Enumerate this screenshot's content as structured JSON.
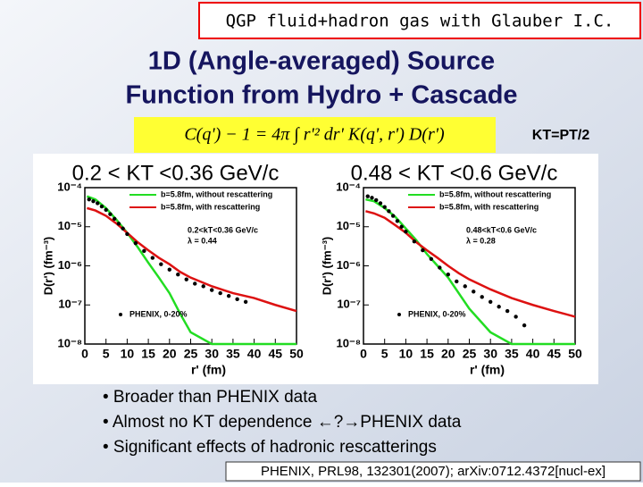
{
  "header": {
    "tag": "QGP fluid+hadron gas with Glauber I.C.",
    "title": [
      "1D (Angle-averaged) Source",
      "Function from Hydro + Cascade"
    ],
    "formula": "C(q') − 1 = 4π ∫ r'² dr' K(q', r') D(r')",
    "note": "KT=PT/2"
  },
  "chart_data": [
    {
      "type": "line",
      "title": "0.2 < KT <0.36 GeV/c",
      "xlabel": "r' (fm)",
      "ylabel": "D(r') (fm⁻³)",
      "log_y": true,
      "xlim": [
        0,
        50
      ],
      "ylim": [
        1e-08,
        0.0001
      ],
      "xticks": [
        0,
        5,
        10,
        15,
        20,
        25,
        30,
        35,
        40,
        45,
        50
      ],
      "yticks": [
        {
          "value": 1e-08,
          "label": "10⁻⁸"
        },
        {
          "value": 1e-07,
          "label": "10⁻⁷"
        },
        {
          "value": 1e-06,
          "label": "10⁻⁶"
        },
        {
          "value": 1e-05,
          "label": "10⁻⁵"
        },
        {
          "value": 0.0001,
          "label": "10⁻⁴"
        }
      ],
      "annotations": [
        "0.2<kT<0.36 GeV/c",
        "λ = 0.44"
      ],
      "series": [
        {
          "name": "b=5.8fm, without rescattering",
          "color": "#22dd22",
          "style": "line",
          "x": [
            0.5,
            2.5,
            5,
            7.5,
            10,
            12.5,
            15,
            17.5,
            20,
            22.5,
            25,
            30,
            35,
            40,
            45,
            50
          ],
          "values": [
            6e-05,
            5e-05,
            3e-05,
            1.5e-05,
            7e-06,
            3e-06,
            1.2e-06,
            5e-07,
            2e-07,
            6e-08,
            2e-08,
            1e-08,
            1e-08,
            1e-08,
            1e-08,
            1e-08
          ]
        },
        {
          "name": "b=5.8fm, with rescattering",
          "color": "#dd1111",
          "style": "line",
          "x": [
            0.5,
            2.5,
            5,
            7.5,
            10,
            12.5,
            15,
            17.5,
            20,
            22.5,
            25,
            30,
            35,
            40,
            45,
            50
          ],
          "values": [
            3e-05,
            2.6e-05,
            1.9e-05,
            1.2e-05,
            7e-06,
            4e-06,
            2.5e-06,
            1.6e-06,
            1.1e-06,
            7e-07,
            5e-07,
            3e-07,
            2e-07,
            1.5e-07,
            1e-07,
            7e-08
          ]
        },
        {
          "name": "PHENIX, 0-20%",
          "color": "#000000",
          "style": "points",
          "x": [
            1,
            2,
            3,
            4,
            5,
            6,
            7,
            8,
            9,
            10,
            12,
            14,
            16,
            18,
            20,
            22,
            24,
            26,
            28,
            30,
            32,
            34,
            36,
            38
          ],
          "values": [
            5e-05,
            4.5e-05,
            4e-05,
            3.3e-05,
            2.7e-05,
            2.1e-05,
            1.6e-05,
            1.2e-05,
            9e-06,
            6.5e-06,
            3.8e-06,
            2.4e-06,
            1.6e-06,
            1.1e-06,
            8e-07,
            6e-07,
            4.5e-07,
            3.5e-07,
            3e-07,
            2.4e-07,
            2e-07,
            1.7e-07,
            1.4e-07,
            1.2e-07
          ]
        }
      ]
    },
    {
      "type": "line",
      "title": "0.48 < KT <0.6 GeV/c",
      "xlabel": "r' (fm)",
      "ylabel": "D(r') (fm⁻³)",
      "log_y": true,
      "xlim": [
        0,
        50
      ],
      "ylim": [
        1e-08,
        0.0001
      ],
      "xticks": [
        0,
        5,
        10,
        15,
        20,
        25,
        30,
        35,
        40,
        45,
        50
      ],
      "yticks": [
        {
          "value": 1e-08,
          "label": "10⁻⁸"
        },
        {
          "value": 1e-07,
          "label": "10⁻⁷"
        },
        {
          "value": 1e-06,
          "label": "10⁻⁶"
        },
        {
          "value": 1e-05,
          "label": "10⁻⁵"
        },
        {
          "value": 0.0001,
          "label": "10⁻⁴"
        }
      ],
      "annotations": [
        "0.48<kT<0.6 GeV/c",
        "λ = 0.28"
      ],
      "series": [
        {
          "name": "b=5.8fm, without rescattering",
          "color": "#22dd22",
          "style": "line",
          "x": [
            0.5,
            2.5,
            5,
            7.5,
            10,
            12.5,
            15,
            17.5,
            20,
            22.5,
            25,
            30,
            35,
            40,
            45,
            50
          ],
          "values": [
            5e-05,
            4.5e-05,
            3e-05,
            1.8e-05,
            9e-06,
            4.5e-06,
            2e-06,
            1e-06,
            5e-07,
            2e-07,
            8e-08,
            2e-08,
            1e-08,
            1e-08,
            1e-08,
            1e-08
          ]
        },
        {
          "name": "b=5.8fm, with rescattering",
          "color": "#dd1111",
          "style": "line",
          "x": [
            0.5,
            2.5,
            5,
            7.5,
            10,
            12.5,
            15,
            17.5,
            20,
            22.5,
            25,
            30,
            35,
            40,
            45,
            50
          ],
          "values": [
            2.5e-05,
            2.2e-05,
            1.7e-05,
            1.1e-05,
            7e-06,
            4e-06,
            2.5e-06,
            1.6e-06,
            1e-06,
            6.5e-07,
            4.5e-07,
            2.5e-07,
            1.5e-07,
            1e-07,
            7e-08,
            5e-08
          ]
        },
        {
          "name": "PHENIX, 0-20%",
          "color": "#000000",
          "style": "points",
          "x": [
            1,
            2,
            3,
            4,
            5,
            6,
            7,
            8,
            9,
            10,
            12,
            14,
            16,
            18,
            20,
            22,
            24,
            26,
            28,
            30,
            32,
            34,
            36,
            38
          ],
          "values": [
            6e-05,
            5.5e-05,
            4.8e-05,
            4e-05,
            3.2e-05,
            2.5e-05,
            1.9e-05,
            1.4e-05,
            1e-05,
            7.5e-06,
            4.2e-06,
            2.5e-06,
            1.5e-06,
            9e-07,
            6e-07,
            4e-07,
            3e-07,
            2.2e-07,
            1.6e-07,
            1.2e-07,
            9e-08,
            7e-08,
            5e-08,
            3e-08
          ]
        }
      ]
    }
  ],
  "bullets": [
    "• Broader than PHENIX data",
    "• Almost no KT dependence ←?→PHENIX data",
    "• Significant effects of hadronic rescatterings"
  ],
  "reference": "PHENIX, PRL98, 132301(2007); arXiv:0712.4372[nucl-ex]"
}
